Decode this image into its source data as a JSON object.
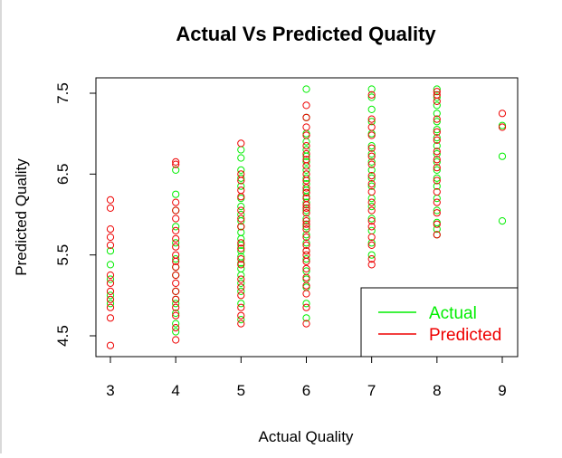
{
  "chart_data": {
    "type": "scatter",
    "title": "Actual Vs Predicted Quality",
    "xlabel": "Actual Quality",
    "ylabel": "Predicted Quality",
    "xlim": [
      3,
      9
    ],
    "ylim": [
      4.3,
      7.65
    ],
    "x_ticks": [
      "3",
      "4",
      "5",
      "6",
      "7",
      "8",
      "9"
    ],
    "y_ticks": [
      "4.5",
      "5.5",
      "6.5",
      "7.5"
    ],
    "legend": {
      "position": "bottom-right",
      "entries": [
        {
          "label": "Actual",
          "color": "#00ee00"
        },
        {
          "label": "Predicted",
          "color": "#ee0000"
        }
      ]
    },
    "series": [
      {
        "name": "Actual",
        "color": "#00ee00",
        "points": [
          [
            3,
            5.55
          ],
          [
            3,
            5.38
          ],
          [
            3,
            5.2
          ],
          [
            3,
            5.0
          ],
          [
            3,
            4.9
          ],
          [
            4,
            6.55
          ],
          [
            4,
            6.25
          ],
          [
            4,
            6.05
          ],
          [
            4,
            5.85
          ],
          [
            4,
            5.65
          ],
          [
            4,
            5.45
          ],
          [
            4,
            5.25
          ],
          [
            4,
            5.05
          ],
          [
            4,
            4.9
          ],
          [
            4,
            4.78
          ],
          [
            4,
            4.65
          ],
          [
            4,
            4.55
          ],
          [
            4,
            4.95
          ],
          [
            4,
            5.35
          ],
          [
            5,
            6.8
          ],
          [
            5,
            6.7
          ],
          [
            5,
            6.55
          ],
          [
            5,
            6.45
          ],
          [
            5,
            6.35
          ],
          [
            5,
            6.2
          ],
          [
            5,
            6.1
          ],
          [
            5,
            6.0
          ],
          [
            5,
            5.92
          ],
          [
            5,
            5.85
          ],
          [
            5,
            5.78
          ],
          [
            5,
            5.7
          ],
          [
            5,
            5.62
          ],
          [
            5,
            5.55
          ],
          [
            5,
            5.48
          ],
          [
            5,
            5.4
          ],
          [
            5,
            5.33
          ],
          [
            5,
            5.25
          ],
          [
            5,
            5.15
          ],
          [
            5,
            5.05
          ],
          [
            5,
            4.9
          ],
          [
            5,
            4.7
          ],
          [
            6,
            7.55
          ],
          [
            6,
            7.2
          ],
          [
            6,
            7.0
          ],
          [
            6,
            6.9
          ],
          [
            6,
            6.8
          ],
          [
            6,
            6.72
          ],
          [
            6,
            6.65
          ],
          [
            6,
            6.55
          ],
          [
            6,
            6.45
          ],
          [
            6,
            6.38
          ],
          [
            6,
            6.3
          ],
          [
            6,
            6.22
          ],
          [
            6,
            6.15
          ],
          [
            6,
            6.05
          ],
          [
            6,
            5.95
          ],
          [
            6,
            5.85
          ],
          [
            6,
            5.75
          ],
          [
            6,
            5.65
          ],
          [
            6,
            5.55
          ],
          [
            6,
            5.45
          ],
          [
            6,
            5.3
          ],
          [
            6,
            5.2
          ],
          [
            6,
            5.1
          ],
          [
            6,
            4.9
          ],
          [
            6,
            4.72
          ],
          [
            7,
            7.55
          ],
          [
            7,
            7.45
          ],
          [
            7,
            7.3
          ],
          [
            7,
            7.15
          ],
          [
            7,
            7.0
          ],
          [
            7,
            6.85
          ],
          [
            7,
            6.75
          ],
          [
            7,
            6.65
          ],
          [
            7,
            6.55
          ],
          [
            7,
            6.45
          ],
          [
            7,
            6.35
          ],
          [
            7,
            6.2
          ],
          [
            7,
            6.1
          ],
          [
            7,
            5.95
          ],
          [
            7,
            5.8
          ],
          [
            7,
            5.65
          ],
          [
            7,
            5.5
          ],
          [
            8,
            7.55
          ],
          [
            8,
            7.45
          ],
          [
            8,
            7.35
          ],
          [
            8,
            7.25
          ],
          [
            8,
            7.15
          ],
          [
            8,
            7.05
          ],
          [
            8,
            6.95
          ],
          [
            8,
            6.85
          ],
          [
            8,
            6.75
          ],
          [
            8,
            6.65
          ],
          [
            8,
            6.55
          ],
          [
            8,
            6.45
          ],
          [
            8,
            6.35
          ],
          [
            8,
            6.2
          ],
          [
            8,
            6.05
          ],
          [
            8,
            5.9
          ],
          [
            8,
            5.82
          ],
          [
            8,
            5.75
          ],
          [
            9,
            7.1
          ],
          [
            9,
            6.72
          ],
          [
            9,
            5.92
          ]
        ]
      },
      {
        "name": "Predicted",
        "color": "#ee0000",
        "points": [
          [
            3,
            6.18
          ],
          [
            3,
            6.08
          ],
          [
            3,
            5.82
          ],
          [
            3,
            5.72
          ],
          [
            3,
            5.62
          ],
          [
            3,
            5.25
          ],
          [
            3,
            5.15
          ],
          [
            3,
            5.05
          ],
          [
            3,
            4.95
          ],
          [
            3,
            4.85
          ],
          [
            3,
            4.72
          ],
          [
            3,
            4.38
          ],
          [
            4,
            6.65
          ],
          [
            4,
            6.62
          ],
          [
            4,
            6.15
          ],
          [
            4,
            6.05
          ],
          [
            4,
            5.95
          ],
          [
            4,
            5.8
          ],
          [
            4,
            5.7
          ],
          [
            4,
            5.6
          ],
          [
            4,
            5.5
          ],
          [
            4,
            5.42
          ],
          [
            4,
            5.35
          ],
          [
            4,
            5.25
          ],
          [
            4,
            5.15
          ],
          [
            4,
            5.05
          ],
          [
            4,
            4.95
          ],
          [
            4,
            4.85
          ],
          [
            4,
            4.75
          ],
          [
            4,
            4.6
          ],
          [
            4,
            4.45
          ],
          [
            5,
            6.88
          ],
          [
            5,
            6.5
          ],
          [
            5,
            6.42
          ],
          [
            5,
            6.3
          ],
          [
            5,
            6.22
          ],
          [
            5,
            6.05
          ],
          [
            5,
            5.95
          ],
          [
            5,
            5.85
          ],
          [
            5,
            5.65
          ],
          [
            5,
            5.58
          ],
          [
            5,
            5.45
          ],
          [
            5,
            5.38
          ],
          [
            5,
            5.2
          ],
          [
            5,
            5.1
          ],
          [
            5,
            5.0
          ],
          [
            5,
            4.85
          ],
          [
            5,
            4.75
          ],
          [
            5,
            4.65
          ],
          [
            6,
            7.35
          ],
          [
            6,
            7.2
          ],
          [
            6,
            7.08
          ],
          [
            6,
            6.98
          ],
          [
            6,
            6.85
          ],
          [
            6,
            6.75
          ],
          [
            6,
            6.68
          ],
          [
            6,
            6.6
          ],
          [
            6,
            6.5
          ],
          [
            6,
            6.42
          ],
          [
            6,
            6.33
          ],
          [
            6,
            6.27
          ],
          [
            6,
            6.2
          ],
          [
            6,
            6.12
          ],
          [
            6,
            6.08
          ],
          [
            6,
            6.02
          ],
          [
            6,
            5.92
          ],
          [
            6,
            5.88
          ],
          [
            6,
            5.82
          ],
          [
            6,
            5.72
          ],
          [
            6,
            5.62
          ],
          [
            6,
            5.55
          ],
          [
            6,
            5.5
          ],
          [
            6,
            5.42
          ],
          [
            6,
            5.33
          ],
          [
            6,
            5.22
          ],
          [
            6,
            5.12
          ],
          [
            6,
            5.02
          ],
          [
            6,
            4.85
          ],
          [
            6,
            4.65
          ],
          [
            7,
            7.48
          ],
          [
            7,
            7.18
          ],
          [
            7,
            7.08
          ],
          [
            7,
            6.98
          ],
          [
            7,
            6.82
          ],
          [
            7,
            6.72
          ],
          [
            7,
            6.62
          ],
          [
            7,
            6.48
          ],
          [
            7,
            6.38
          ],
          [
            7,
            6.28
          ],
          [
            7,
            6.15
          ],
          [
            7,
            6.05
          ],
          [
            7,
            5.92
          ],
          [
            7,
            5.85
          ],
          [
            7,
            5.72
          ],
          [
            7,
            5.62
          ],
          [
            7,
            5.45
          ],
          [
            7,
            5.38
          ],
          [
            8,
            7.52
          ],
          [
            8,
            7.48
          ],
          [
            8,
            7.4
          ],
          [
            8,
            7.18
          ],
          [
            8,
            7.02
          ],
          [
            8,
            6.92
          ],
          [
            8,
            6.78
          ],
          [
            8,
            6.68
          ],
          [
            8,
            6.58
          ],
          [
            8,
            6.42
          ],
          [
            8,
            6.28
          ],
          [
            8,
            6.15
          ],
          [
            8,
            6.02
          ],
          [
            8,
            5.88
          ],
          [
            8,
            5.75
          ],
          [
            9,
            7.25
          ],
          [
            9,
            7.08
          ]
        ]
      }
    ]
  }
}
